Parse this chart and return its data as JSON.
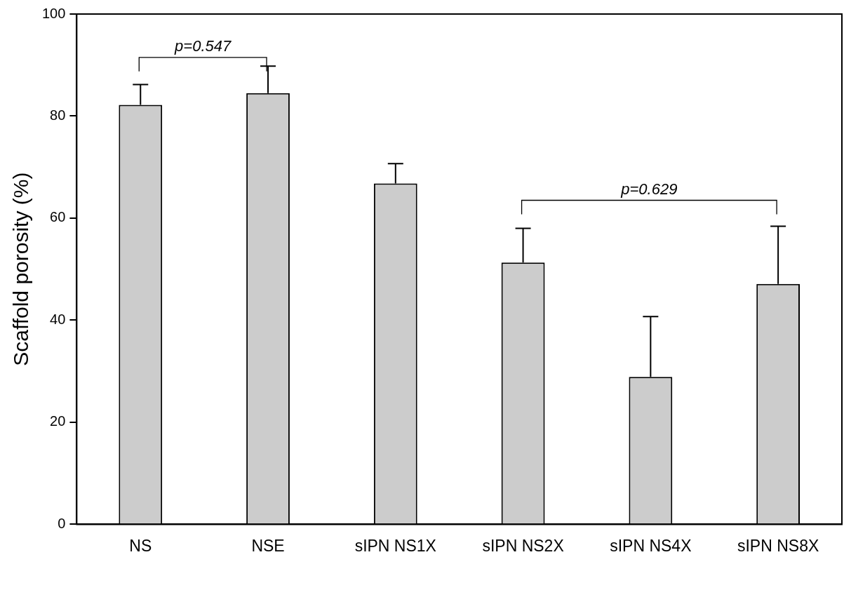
{
  "chart_data": {
    "type": "bar",
    "ylabel": "Scaffold porosity (%)",
    "categories": [
      "NS",
      "NSE",
      "sIPN NS1X",
      "sIPN NS2X",
      "sIPN NS4X",
      "sIPN NS8X"
    ],
    "values": [
      82.2,
      84.5,
      66.8,
      51.3,
      28.9,
      47.1
    ],
    "errors": [
      [
        82.2,
        86.2
      ],
      [
        84.5,
        89.8
      ],
      [
        66.8,
        70.7
      ],
      [
        51.3,
        58.0
      ],
      [
        28.9,
        40.7
      ],
      [
        47.1,
        58.4
      ]
    ],
    "color": "#cccccc",
    "ylim": [
      0,
      100
    ],
    "yticks": [
      0,
      20,
      40,
      60,
      80,
      100
    ],
    "grid": false,
    "legend": false,
    "annotations": [
      {
        "text": "p=0.547"
      },
      {
        "text": "p=0.629"
      }
    ]
  }
}
